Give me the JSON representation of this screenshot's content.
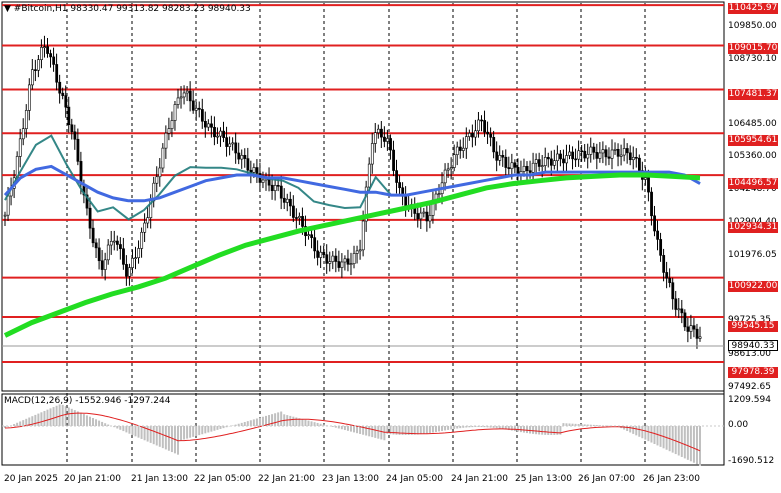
{
  "chart_header": "▼ #Bitcoin,H1  98330.47 99313.82 98283.23 98940.33",
  "macd_header": "MACD(12,26,9) -1552.946 -1297.244",
  "price_axis_ticks": [
    "109850.00",
    "108730.10",
    "106485.00",
    "105360.00",
    "104248.70",
    "102904.40",
    "101976.05",
    "99725.35",
    "98613.00",
    "97492.65"
  ],
  "levels": [
    "110425.97",
    "109015.70",
    "107481.37",
    "105954.61",
    "104496.57",
    "102934.31",
    "100922.00",
    "99545.15",
    "97978.39"
  ],
  "current_price": "98940.33",
  "macd_axis_ticks": [
    "1209.594",
    "0.00",
    "-1690.512"
  ],
  "time_ticks": [
    "20 Jan 2025",
    "20 Jan 21:00",
    "21 Jan 13:00",
    "22 Jan 05:00",
    "22 Jan 21:00",
    "23 Jan 13:00",
    "24 Jan 05:00",
    "24 Jan 21:00",
    "25 Jan 13:00",
    "26 Jan 07:00",
    "26 Jan 23:00"
  ],
  "colors": {
    "level_line": "#e02020",
    "ma_fast": "#1e7a7a",
    "ma_mid": "#4169e1",
    "ma_slow": "#22dd22",
    "candle": "#000000",
    "macd_hist": "#c0c0c0",
    "macd_signal": "#e02020"
  },
  "chart_data": {
    "type": "line",
    "series": [
      {
        "y": [
          103100,
          105300,
          108100,
          109100,
          107500,
          105900,
          103200,
          101200,
          102400,
          101000,
          102300,
          104200,
          106200,
          107500,
          106800,
          106100,
          105800,
          105300,
          104700,
          104300,
          104000,
          103300,
          102600,
          101700,
          101500,
          101400,
          101800,
          106000,
          105800,
          103800,
          103200,
          103000,
          104200,
          105200,
          105800,
          106400,
          105200,
          104800,
          104600,
          104900,
          105000,
          105100,
          105200,
          105300,
          105200,
          105300,
          105200,
          104300,
          101800,
          100200,
          99200,
          98900
        ]
      },
      {
        "y": [
          103800,
          104400,
          104700,
          104800,
          104500,
          104200,
          103900,
          103700,
          103600,
          103600,
          103700,
          103900,
          104100,
          104300,
          104400,
          104500,
          104500,
          104400,
          104400,
          104300,
          104200,
          104100,
          104000,
          103900,
          103900,
          103800,
          103800,
          103900,
          104000,
          104100,
          104200,
          104300,
          104400,
          104500,
          104500,
          104600,
          104600,
          104600,
          104600,
          104600,
          104600,
          104600,
          104600,
          104600,
          104500,
          104200
        ]
      },
      {
        "y": [
          98900,
          99350,
          99700,
          100050,
          100350,
          100600,
          100900,
          101300,
          101700,
          102050,
          102300,
          102550,
          102750,
          102950,
          103150,
          103350,
          103550,
          103800,
          104050,
          104200,
          104300,
          104400,
          104450,
          104500,
          104500,
          104450,
          104400
        ]
      }
    ],
    "ylim": [
      97000,
      110500
    ]
  }
}
